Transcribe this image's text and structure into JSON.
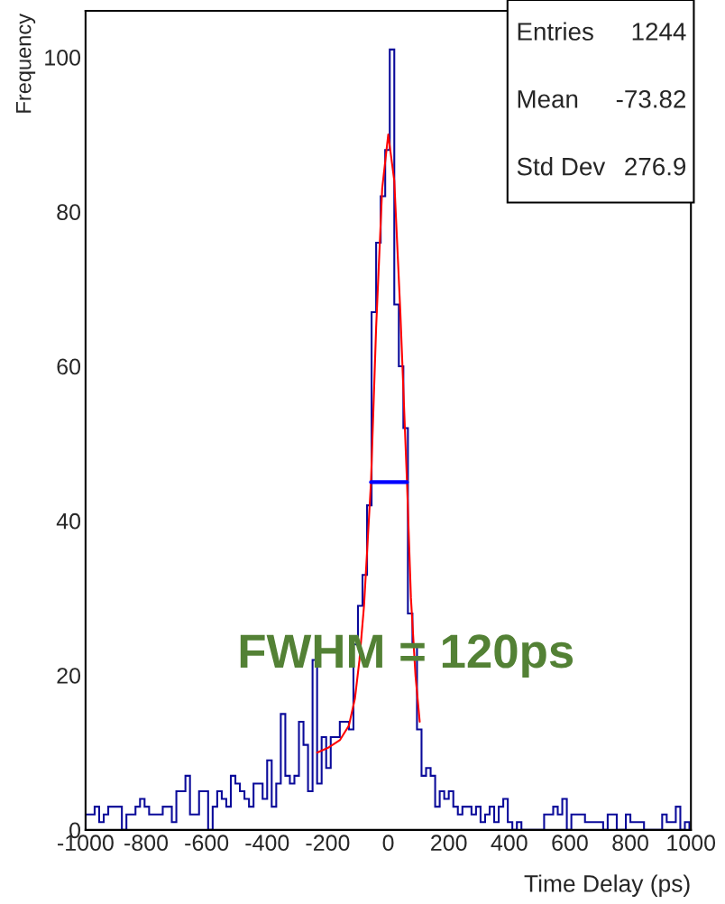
{
  "chart_data": {
    "type": "histogram",
    "xlabel": "Time Delay (ps)",
    "ylabel": "Frequency",
    "xlim": [
      -1000,
      1000
    ],
    "xticks": [
      -1000,
      -800,
      -600,
      -400,
      -200,
      0,
      200,
      400,
      600,
      800,
      1000
    ],
    "ylim": [
      0,
      106
    ],
    "yticks": [
      0,
      20,
      40,
      60,
      80,
      100
    ],
    "grid": false,
    "legend": false,
    "annotations": [
      "Entries 1244",
      "Mean -73.82",
      "Std Dev 276.9",
      "FWHM = 120ps"
    ],
    "series": [
      {
        "color": "#0a0a9a",
        "bins": [
          -1000,
          -985,
          -970,
          -955,
          -940,
          -925,
          -910,
          -895,
          -880,
          -865,
          -850,
          -835,
          -820,
          -805,
          -790,
          -775,
          -760,
          -745,
          -730,
          -715,
          -700,
          -685,
          -670,
          -655,
          -640,
          -625,
          -610,
          -595,
          -580,
          -565,
          -550,
          -535,
          -520,
          -505,
          -490,
          -475,
          -460,
          -445,
          -430,
          -415,
          -400,
          -385,
          -370,
          -355,
          -340,
          -325,
          -310,
          -295,
          -280,
          -265,
          -250,
          -235,
          -220,
          -205,
          -190,
          -175,
          -160,
          -145,
          -130,
          -115,
          -100,
          -85,
          -70,
          -55,
          -40,
          -25,
          -10,
          5,
          20,
          35,
          50,
          65,
          80,
          95,
          110,
          125,
          140,
          155,
          170,
          185,
          200,
          215,
          230,
          245,
          260,
          275,
          290,
          305,
          320,
          335,
          350,
          365,
          380,
          395,
          410,
          425,
          440,
          455,
          470,
          485,
          500,
          515,
          530,
          545,
          560,
          575,
          590,
          605,
          620,
          635,
          650,
          665,
          680,
          695,
          710,
          725,
          740,
          755,
          770,
          785,
          800,
          815,
          830,
          845,
          860,
          875,
          890,
          905,
          920,
          935,
          950,
          965,
          980,
          995
        ],
        "values": [
          2,
          2,
          3,
          1,
          2,
          3,
          3,
          3,
          0,
          2,
          2,
          3,
          4,
          3,
          2,
          2,
          2,
          3,
          3,
          1,
          5,
          5,
          7,
          2,
          2,
          5,
          5,
          0,
          3,
          5,
          4,
          3,
          7,
          6,
          5,
          4,
          3,
          6,
          6,
          4,
          9,
          3,
          6,
          15,
          7,
          6,
          7,
          14,
          11,
          5,
          22,
          6,
          12,
          8,
          12,
          12,
          14,
          14,
          13,
          24,
          29,
          33,
          42,
          67,
          76,
          82,
          88,
          101,
          68,
          60,
          52,
          28,
          24,
          13,
          7,
          8,
          7,
          3,
          5,
          4,
          5,
          3,
          2,
          3,
          3,
          2,
          3,
          1,
          2,
          3,
          1,
          3,
          4,
          1,
          0,
          1,
          0,
          0,
          0,
          0,
          0,
          2,
          2,
          3,
          2,
          4,
          0,
          2,
          2,
          2,
          1,
          1,
          1,
          1,
          0,
          2,
          2,
          0,
          0,
          2,
          1,
          1,
          1,
          0,
          0,
          0,
          0,
          2,
          1,
          1,
          3,
          0,
          1
        ]
      },
      {
        "type": "line",
        "color": "#ff0000",
        "x": [
          -235,
          -200,
          -160,
          -130,
          -110,
          -95,
          -80,
          -57,
          -40,
          -20,
          0,
          20,
          40,
          62,
          75,
          90,
          104
        ],
        "values": [
          10,
          10.6,
          11.6,
          13.5,
          17,
          22,
          29,
          45,
          65,
          83,
          90,
          84,
          67,
          45,
          30,
          20,
          14
        ]
      },
      {
        "type": "line",
        "color": "#0000ff",
        "x": [
          -57,
          62
        ],
        "values": [
          45,
          45
        ]
      }
    ]
  }
}
